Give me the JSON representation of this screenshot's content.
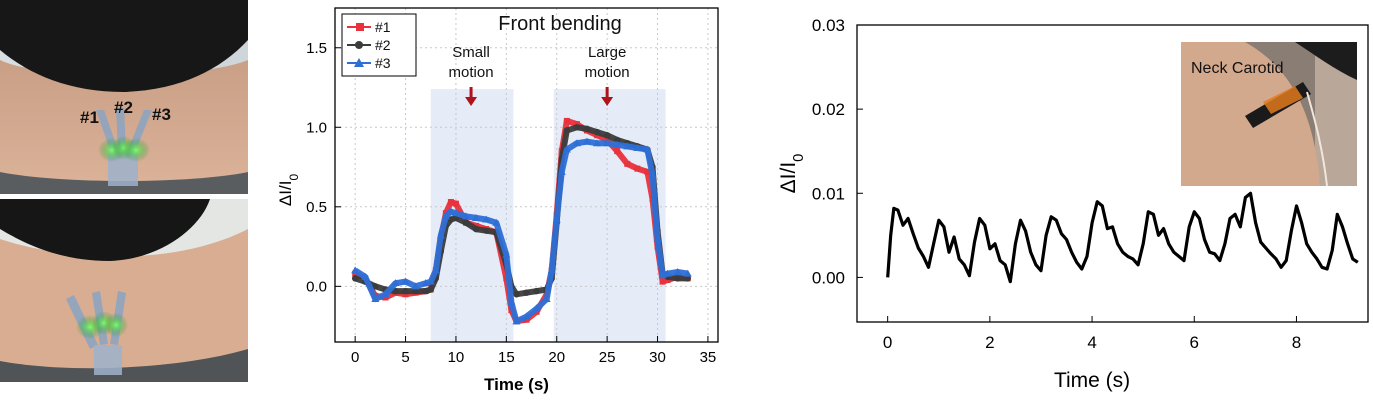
{
  "photos": {
    "top": {
      "labels": [
        "#1",
        "#2",
        "#3"
      ]
    },
    "bottom": {}
  },
  "chart_data": [
    {
      "type": "line",
      "title": "Front bending",
      "xlabel": "Time (s)",
      "ylabel": "ΔI/I0",
      "xlim": [
        -2,
        36
      ],
      "ylim": [
        -0.35,
        1.75
      ],
      "xticks": [
        0,
        5,
        10,
        15,
        20,
        25,
        30,
        35
      ],
      "yticks": [
        0.0,
        0.5,
        1.0,
        1.5
      ],
      "legend": "top-left",
      "regions": [
        {
          "label_lines": [
            "Small",
            "motion"
          ],
          "x0": 7.5,
          "x1": 15.7,
          "arrow_x": 11.5
        },
        {
          "label_lines": [
            "Large",
            "motion"
          ],
          "x0": 19.7,
          "x1": 30.8,
          "arrow_x": 25.0
        }
      ],
      "series": [
        {
          "name": "#1",
          "color": "#e8323c",
          "marker": "square",
          "x": [
            0,
            1,
            2,
            3,
            4,
            5,
            6,
            7,
            7.5,
            8,
            8.5,
            9,
            9.5,
            10,
            11,
            12,
            13,
            14,
            15,
            15.5,
            16,
            17,
            18,
            19,
            19.5,
            20,
            20.5,
            21,
            22,
            23,
            24,
            25,
            26,
            27,
            28,
            29,
            29.5,
            30,
            30.5,
            31,
            32,
            33
          ],
          "y": [
            0.08,
            0.05,
            -0.06,
            -0.07,
            -0.04,
            -0.05,
            -0.04,
            -0.03,
            -0.02,
            0.1,
            0.3,
            0.46,
            0.53,
            0.52,
            0.4,
            0.38,
            0.36,
            0.34,
            0.05,
            -0.15,
            -0.22,
            -0.21,
            -0.16,
            -0.05,
            0.1,
            0.45,
            0.85,
            1.04,
            1.02,
            0.98,
            0.95,
            0.92,
            0.85,
            0.77,
            0.74,
            0.72,
            0.55,
            0.25,
            0.03,
            0.04,
            0.06,
            0.05
          ]
        },
        {
          "name": "#2",
          "color": "#3c3c3c",
          "marker": "circle",
          "x": [
            0,
            1,
            2,
            3,
            4,
            5,
            6,
            7,
            7.5,
            8,
            8.5,
            9,
            9.5,
            10,
            11,
            12,
            13,
            14,
            15,
            15.5,
            16,
            17,
            18,
            19,
            19.5,
            20,
            20.5,
            21,
            22,
            23,
            24,
            25,
            26,
            27,
            28,
            29,
            29.5,
            30,
            30.5,
            31,
            32,
            33
          ],
          "y": [
            0.05,
            0.03,
            0.0,
            -0.02,
            -0.03,
            -0.03,
            -0.03,
            -0.03,
            -0.02,
            0.05,
            0.22,
            0.38,
            0.42,
            0.43,
            0.4,
            0.36,
            0.35,
            0.34,
            0.14,
            0.0,
            -0.05,
            -0.04,
            -0.03,
            -0.02,
            0.05,
            0.4,
            0.8,
            0.98,
            1.0,
            0.99,
            0.97,
            0.95,
            0.92,
            0.9,
            0.88,
            0.86,
            0.75,
            0.35,
            0.08,
            0.06,
            0.05,
            0.05
          ]
        },
        {
          "name": "#3",
          "color": "#2e6fd6",
          "marker": "triangle",
          "x": [
            0,
            1,
            2,
            3,
            4,
            5,
            6,
            7,
            7.5,
            8,
            8.5,
            9,
            9.5,
            10,
            11,
            12,
            13,
            14,
            15,
            15.5,
            16,
            17,
            18,
            19,
            19.5,
            20,
            20.5,
            21,
            22,
            23,
            24,
            25,
            26,
            27,
            28,
            29,
            29.5,
            30,
            30.5,
            31,
            32,
            33
          ],
          "y": [
            0.1,
            0.06,
            -0.08,
            -0.05,
            0.02,
            0.03,
            0.0,
            0.02,
            0.03,
            0.1,
            0.32,
            0.44,
            0.47,
            0.46,
            0.44,
            0.43,
            0.42,
            0.4,
            0.2,
            -0.1,
            -0.22,
            -0.19,
            -0.14,
            -0.08,
            0.1,
            0.42,
            0.72,
            0.86,
            0.9,
            0.91,
            0.9,
            0.9,
            0.89,
            0.88,
            0.87,
            0.86,
            0.7,
            0.3,
            0.07,
            0.08,
            0.09,
            0.08
          ]
        }
      ]
    },
    {
      "type": "line",
      "title": "",
      "xlabel": "Time (s)",
      "ylabel": "ΔI/I0",
      "xlim": [
        -0.6,
        9.4
      ],
      "ylim": [
        -0.0053,
        0.03
      ],
      "xticks": [
        0,
        2,
        4,
        6,
        8
      ],
      "yticks": [
        0.0,
        0.01,
        0.02,
        0.03
      ],
      "ytick_labels": [
        "0.00",
        "0.01",
        "0.02",
        "0.03"
      ],
      "inset_label": "Neck Carotid",
      "series": [
        {
          "name": "",
          "color": "#000000",
          "x": [
            0,
            0.06,
            0.12,
            0.2,
            0.3,
            0.4,
            0.5,
            0.6,
            0.7,
            0.8,
            0.9,
            1.0,
            1.1,
            1.2,
            1.3,
            1.4,
            1.5,
            1.6,
            1.7,
            1.8,
            1.9,
            2.0,
            2.1,
            2.2,
            2.3,
            2.4,
            2.5,
            2.6,
            2.7,
            2.8,
            2.9,
            3.0,
            3.1,
            3.2,
            3.3,
            3.4,
            3.5,
            3.6,
            3.7,
            3.8,
            3.9,
            4.0,
            4.1,
            4.2,
            4.3,
            4.4,
            4.5,
            4.6,
            4.7,
            4.8,
            4.9,
            5.0,
            5.1,
            5.2,
            5.3,
            5.4,
            5.5,
            5.6,
            5.7,
            5.8,
            5.9,
            6.0,
            6.1,
            6.2,
            6.3,
            6.4,
            6.5,
            6.6,
            6.7,
            6.8,
            6.9,
            7.0,
            7.1,
            7.2,
            7.3,
            7.4,
            7.5,
            7.6,
            7.7,
            7.8,
            7.9,
            8.0,
            8.1,
            8.2,
            8.3,
            8.4,
            8.5,
            8.6,
            8.7,
            8.8,
            8.9,
            9.0,
            9.1,
            9.2
          ],
          "y": [
            0.0,
            0.005,
            0.0082,
            0.008,
            0.0062,
            0.007,
            0.0052,
            0.0035,
            0.0025,
            0.0012,
            0.004,
            0.0068,
            0.006,
            0.003,
            0.0048,
            0.0022,
            0.0015,
            0.0002,
            0.0042,
            0.007,
            0.0062,
            0.0034,
            0.004,
            0.002,
            0.0015,
            -0.0005,
            0.004,
            0.0068,
            0.0055,
            0.003,
            0.0015,
            0.0008,
            0.005,
            0.0072,
            0.0068,
            0.0052,
            0.0045,
            0.003,
            0.0018,
            0.001,
            0.0025,
            0.0065,
            0.009,
            0.0085,
            0.0058,
            0.006,
            0.004,
            0.003,
            0.0025,
            0.0022,
            0.0015,
            0.004,
            0.0078,
            0.0075,
            0.005,
            0.0058,
            0.004,
            0.003,
            0.0025,
            0.002,
            0.006,
            0.0078,
            0.007,
            0.0045,
            0.003,
            0.0028,
            0.002,
            0.004,
            0.007,
            0.0075,
            0.006,
            0.0095,
            0.01,
            0.0065,
            0.0042,
            0.0035,
            0.0028,
            0.0022,
            0.0012,
            0.002,
            0.0055,
            0.0085,
            0.0065,
            0.004,
            0.003,
            0.0022,
            0.0012,
            0.001,
            0.0032,
            0.0075,
            0.006,
            0.004,
            0.0022,
            0.0018
          ]
        }
      ]
    }
  ]
}
